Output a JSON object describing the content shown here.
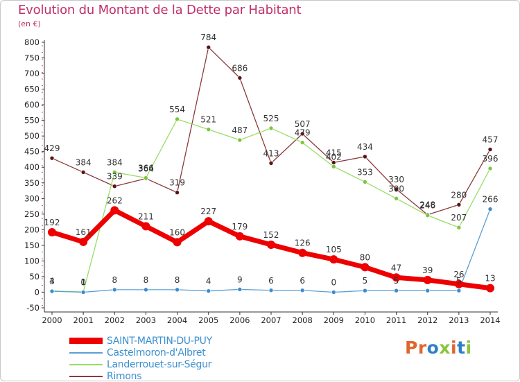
{
  "title": "Evolution du Montant de la Dette par Habitant",
  "unit": "(en €)",
  "logo": {
    "text": "Proxiti",
    "colors": [
      "#e0662c",
      "#e0662c",
      "#2f7fc7",
      "#8cc43c",
      "#e0662c",
      "#2f7fc7",
      "#8cc43c"
    ]
  },
  "chart_data": {
    "type": "line",
    "x": [
      "2000",
      "2001",
      "2002",
      "2003",
      "2004",
      "2005",
      "2006",
      "2007",
      "2008",
      "2009",
      "2010",
      "2011",
      "2012",
      "2013",
      "2014"
    ],
    "ylim": [
      -50,
      800
    ],
    "yticks": [
      "-50",
      "0",
      "50",
      "100",
      "150",
      "200",
      "250",
      "300",
      "350",
      "400",
      "450",
      "500",
      "550",
      "600",
      "650",
      "700",
      "750",
      "800"
    ],
    "grid": false,
    "legend_position": "bottom-left",
    "series": [
      {
        "name": "SAINT-MARTIN-DU-PUY",
        "color": "#ee0000",
        "marker": "#ee0000",
        "values": [
          192,
          161,
          262,
          211,
          160,
          227,
          179,
          152,
          126,
          105,
          80,
          47,
          39,
          26,
          13
        ],
        "labels": [
          "192",
          "161",
          "262",
          "211",
          "160",
          "227",
          "179",
          "152",
          "126",
          "105",
          "80",
          "47",
          "39",
          "26",
          "13"
        ]
      },
      {
        "name": "Castelmoron-d'Albret",
        "color": "#5a9fd4",
        "marker": "#3d8ccc",
        "values": [
          3,
          0,
          8,
          8,
          8,
          4,
          9,
          6,
          6,
          0,
          5,
          5,
          5,
          5,
          266
        ],
        "labels": [
          "3",
          "0",
          "8",
          "8",
          "8",
          "4",
          "9",
          "6",
          "6",
          "0",
          "5",
          "5",
          "",
          "5",
          "266"
        ]
      },
      {
        "name": "Landerrouet-sur-Ségur",
        "color": "#99dd66",
        "marker": "#7cc63c",
        "values": [
          4,
          1,
          384,
          366,
          554,
          521,
          487,
          525,
          479,
          402,
          353,
          300,
          246,
          207,
          396
        ],
        "labels": [
          "4",
          "1",
          "384",
          "366",
          "554",
          "521",
          "487",
          "525",
          "479",
          "402",
          "353",
          "300",
          "246",
          "207",
          "396"
        ]
      },
      {
        "name": "Rimons",
        "color": "#8b3a3a",
        "marker": "#5a1414",
        "values": [
          429,
          384,
          339,
          364,
          319,
          784,
          686,
          413,
          507,
          415,
          434,
          330,
          248,
          280,
          457
        ],
        "labels": [
          "429",
          "384",
          "339",
          "364",
          "319",
          "784",
          "686",
          "413",
          "507",
          "415",
          "434",
          "330",
          "248",
          "280",
          "457"
        ]
      }
    ]
  }
}
